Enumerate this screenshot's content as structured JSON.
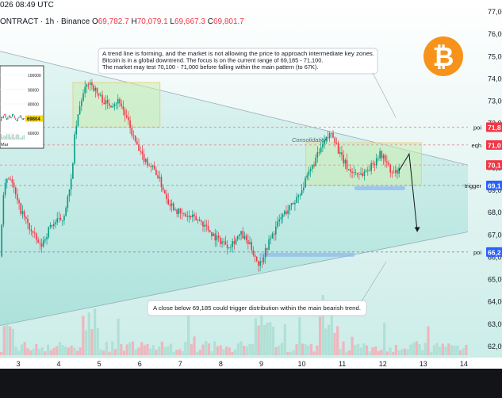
{
  "header": {
    "datetime": "026 08:49 UTC",
    "symbol": "ONTRACT · 1h · Binance",
    "o_label": "O",
    "o_value": "69,782.7",
    "h_label": "H",
    "h_value": "70,079.1",
    "l_label": "L",
    "l_value": "69,667.3",
    "c_label": "C",
    "c_value": "69,801.7"
  },
  "annotations": {
    "top_note": [
      "A trend line is forming, and the market is not allowing the price to approach intermediate key zones.",
      "Bitcoin is in a global downtrend. The focus is on the current range of 69,185 - 71,100.",
      "The market may test 70,100 - 71,000 before falling within the main pattern (to 67K)."
    ],
    "bottom_note": "A close below 69,185 could trigger distribution within the main bearish trend.",
    "consolidation": "Consolidation",
    "bitcoin_logo": "₿"
  },
  "level_labels": {
    "poi_top": "poi",
    "eqh": "eqh",
    "trigger": "trigger",
    "poi_bottom": "poi"
  },
  "price_tags": [
    {
      "text": "71,8",
      "price": 71800,
      "color": "#f23645"
    },
    {
      "text": "71,0",
      "price": 71000,
      "color": "#f23645"
    },
    {
      "text": "70,1",
      "price": 70100,
      "color": "#f23645"
    },
    {
      "text": "69,1",
      "price": 69185,
      "color": "#2962ff"
    },
    {
      "text": "66,2",
      "price": 66200,
      "color": "#2962ff"
    }
  ],
  "inset": {
    "price_tag": "69804",
    "ticks": [
      "100000",
      "90000",
      "80000",
      "70000",
      "60000"
    ],
    "month": "Mar"
  },
  "chart_data": {
    "type": "candlestick",
    "x_ticks": [
      "3",
      "4",
      "5",
      "6",
      "7",
      "8",
      "9",
      "10",
      "11",
      "12",
      "13",
      "14"
    ],
    "y_ticks": [
      "62,000",
      "63,000",
      "64,000",
      "65,000",
      "66,000",
      "67,000",
      "68,000",
      "69,000",
      "70,000",
      "71,000",
      "72,000",
      "73,000",
      "74,000",
      "75,000",
      "76,000",
      "77,000"
    ],
    "ylim": [
      61500,
      77500
    ],
    "xlim": [
      2.55,
      14.1
    ],
    "price_path": [
      [
        2.55,
        66.0
      ],
      [
        2.65,
        69.4
      ],
      [
        2.8,
        69.6
      ],
      [
        3.0,
        68.3
      ],
      [
        3.3,
        67.2
      ],
      [
        3.55,
        66.4
      ],
      [
        3.8,
        67.4
      ],
      [
        4.1,
        67.7
      ],
      [
        4.3,
        69.2
      ],
      [
        4.4,
        71.5
      ],
      [
        4.55,
        73.0
      ],
      [
        4.75,
        73.9
      ],
      [
        4.95,
        73.3
      ],
      [
        5.2,
        72.8
      ],
      [
        5.5,
        73.0
      ],
      [
        5.75,
        71.8
      ],
      [
        6.0,
        70.6
      ],
      [
        6.4,
        69.8
      ],
      [
        6.7,
        68.5
      ],
      [
        7.0,
        67.9
      ],
      [
        7.5,
        67.6
      ],
      [
        7.9,
        66.8
      ],
      [
        8.2,
        66.5
      ],
      [
        8.5,
        67.0
      ],
      [
        8.75,
        66.4
      ],
      [
        8.95,
        65.6
      ],
      [
        9.2,
        66.7
      ],
      [
        9.5,
        67.8
      ],
      [
        9.8,
        68.4
      ],
      [
        10.05,
        69.2
      ],
      [
        10.3,
        70.2
      ],
      [
        10.55,
        71.1
      ],
      [
        10.75,
        71.6
      ],
      [
        10.95,
        70.5
      ],
      [
        11.2,
        69.8
      ],
      [
        11.5,
        69.7
      ],
      [
        11.75,
        70.1
      ],
      [
        11.9,
        70.6
      ],
      [
        12.05,
        70.4
      ],
      [
        12.2,
        69.7
      ],
      [
        12.4,
        69.8
      ]
    ],
    "price_lines": {
      "poi_top": 71800,
      "eqh": 71000,
      "level_70100": 70100,
      "trigger": 69185,
      "poi_bottom": 66200
    },
    "trendline_upper": [
      [
        2.55,
        75.2
      ],
      [
        14.1,
        70.1
      ]
    ],
    "trendline_lower": [
      [
        2.55,
        62.9
      ],
      [
        14.1,
        67.1
      ]
    ],
    "zones": [
      {
        "x0": 4.35,
        "x1": 6.5,
        "y0": 71.8,
        "y1": 73.8
      },
      {
        "x0": 10.1,
        "x1": 12.95,
        "y0": 69.2,
        "y1": 71.1
      }
    ],
    "projection": [
      [
        12.65,
        70.6
      ],
      [
        12.85,
        67.1
      ]
    ],
    "inset_chart": {
      "y_range": [
        58000,
        102000
      ],
      "last_price": 69804,
      "values": [
        68,
        71,
        70,
        72,
        73,
        70,
        69,
        71,
        72,
        70,
        71,
        73,
        72,
        70,
        69,
        68,
        70,
        71,
        72,
        70,
        69,
        70
      ]
    }
  }
}
